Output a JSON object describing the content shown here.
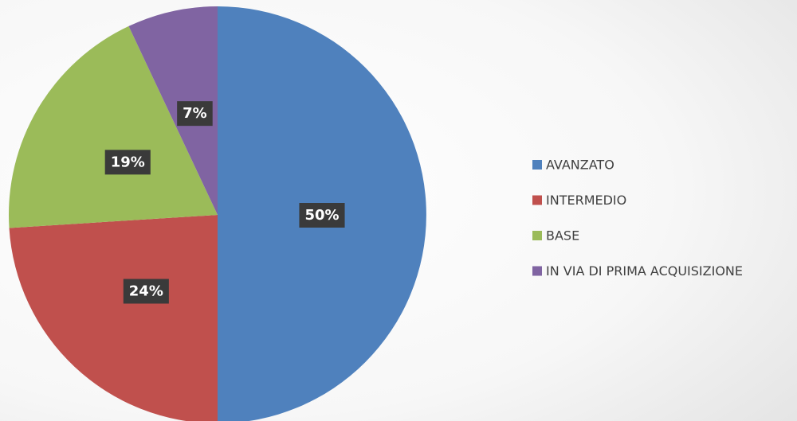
{
  "chart_data": {
    "type": "pie",
    "categories": [
      "AVANZATO",
      "INTERMEDIO",
      "BASE",
      "IN VIA DI PRIMA ACQUISIZIONE"
    ],
    "values": [
      50,
      24,
      19,
      7
    ],
    "value_labels": [
      "50%",
      "24%",
      "19%",
      "7%"
    ],
    "colors": [
      "#4f81bd",
      "#c0504d",
      "#9bbb59",
      "#8064a2"
    ],
    "legend": "right"
  }
}
